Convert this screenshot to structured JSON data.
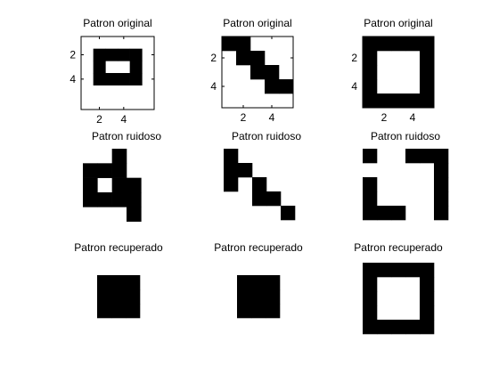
{
  "figure": {
    "background": "#ffffff",
    "cell_on": "#000000",
    "cell_off": "#ffffff"
  },
  "chart_data": [
    {
      "type": "heatmap",
      "title": "Patron original",
      "grid": [
        6,
        6
      ],
      "rows": [
        "000000",
        "011110",
        "010010",
        "011110",
        "000000",
        "000000"
      ],
      "xticks": [
        "2",
        "4"
      ],
      "yticks": [
        "2",
        "4"
      ],
      "axes_visible": true
    },
    {
      "type": "heatmap",
      "title": "Patron original",
      "grid": [
        5,
        5
      ],
      "rows": [
        "11000",
        "01100",
        "00110",
        "00011",
        "00000"
      ],
      "xticks": [
        "2",
        "4"
      ],
      "yticks": [
        "2",
        "4"
      ],
      "axes_visible": true
    },
    {
      "type": "heatmap",
      "title": "Patron original",
      "grid": [
        5,
        5
      ],
      "rows": [
        "11111",
        "10001",
        "10001",
        "10001",
        "11111"
      ],
      "xticks": [
        "2",
        "4"
      ],
      "yticks": [
        "2",
        "4"
      ],
      "axes_visible": true
    },
    {
      "type": "heatmap",
      "title": "Patron ruidoso",
      "grid": [
        6,
        6
      ],
      "rows": [
        "001000",
        "111000",
        "101100",
        "111100",
        "000100",
        "000000"
      ],
      "axes_visible": false
    },
    {
      "type": "heatmap",
      "title": "Patron ruidoso",
      "grid": [
        6,
        6
      ],
      "rows": [
        "100000",
        "110000",
        "101000",
        "001100",
        "000010",
        "000000"
      ],
      "axes_visible": false
    },
    {
      "type": "heatmap",
      "title": "Patron ruidoso",
      "grid": [
        6,
        6
      ],
      "rows": [
        "100111",
        "000001",
        "100001",
        "100001",
        "111001",
        "000000"
      ],
      "axes_visible": false
    },
    {
      "type": "heatmap",
      "title": "Patron recuperado",
      "grid": [
        3,
        3
      ],
      "rows": [
        "111",
        "111",
        "111"
      ],
      "axes_visible": false
    },
    {
      "type": "heatmap",
      "title": "Patron recuperado",
      "grid": [
        3,
        3
      ],
      "rows": [
        "111",
        "111",
        "111"
      ],
      "axes_visible": false
    },
    {
      "type": "heatmap",
      "title": "Patron recuperado",
      "grid": [
        5,
        5
      ],
      "rows": [
        "11111",
        "10001",
        "10001",
        "10001",
        "11111"
      ],
      "axes_visible": false
    }
  ]
}
